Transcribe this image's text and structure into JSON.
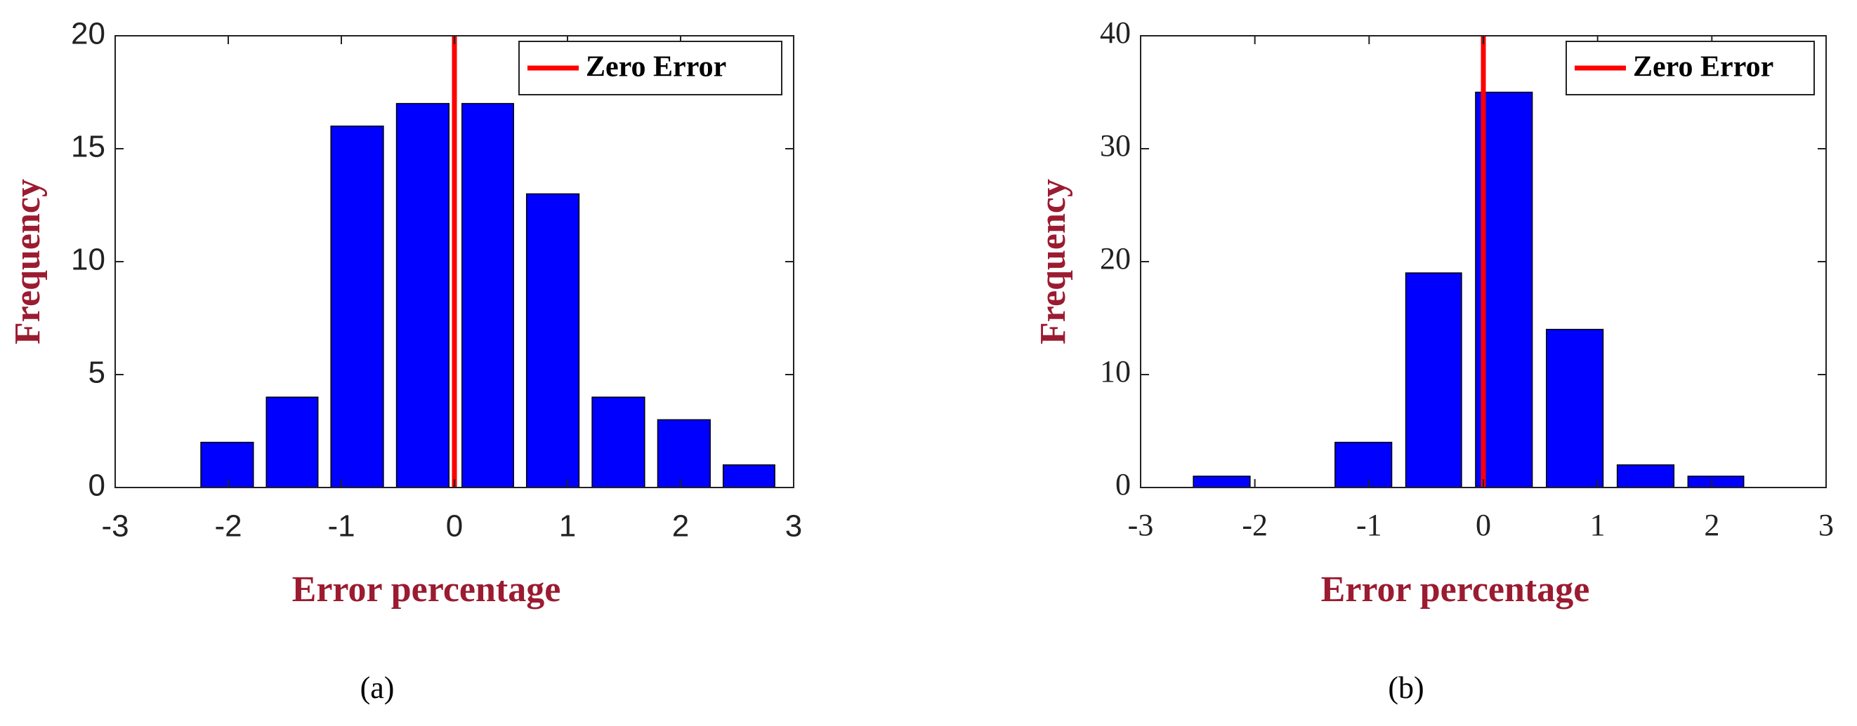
{
  "chart_data": [
    {
      "type": "histogram",
      "panel_label": "(a)",
      "xlabel": "Error percentage",
      "ylabel": "Frequency",
      "bins": [
        -2.3,
        -1.72,
        -1.15,
        -0.57,
        0.01,
        0.58,
        1.16,
        1.74,
        2.32,
        2.89
      ],
      "values": [
        2,
        4,
        16,
        17,
        17,
        13,
        4,
        3,
        1
      ],
      "color": "#0000ff",
      "xlim": [
        -3,
        3
      ],
      "xticks": [
        -3,
        -2,
        -1,
        0,
        1,
        2,
        3
      ],
      "ylim": [
        0,
        20
      ],
      "yticks": [
        0,
        5,
        10,
        15,
        20
      ],
      "reference_line": {
        "name": "Zero Error",
        "x": 0,
        "color": "#ff0000"
      },
      "legend": "northeast",
      "font": "sans"
    },
    {
      "type": "histogram",
      "panel_label": "(b)",
      "xlabel": "Error percentage",
      "ylabel": "Frequency",
      "bins": [
        -2.6,
        -1.98,
        -1.36,
        -0.74,
        -0.13,
        0.49,
        1.11,
        1.73,
        2.34
      ],
      "values": [
        1,
        0,
        4,
        19,
        35,
        14,
        2,
        1
      ],
      "color": "#0000ff",
      "xlim": [
        -3,
        3
      ],
      "xticks": [
        -3,
        -2,
        -1,
        0,
        1,
        2,
        3
      ],
      "ylim": [
        0,
        40
      ],
      "yticks": [
        0,
        10,
        20,
        30,
        40
      ],
      "reference_line": {
        "name": "Zero Error",
        "x": 0,
        "color": "#ff0000"
      },
      "legend": "northeast",
      "font": "serif"
    }
  ]
}
